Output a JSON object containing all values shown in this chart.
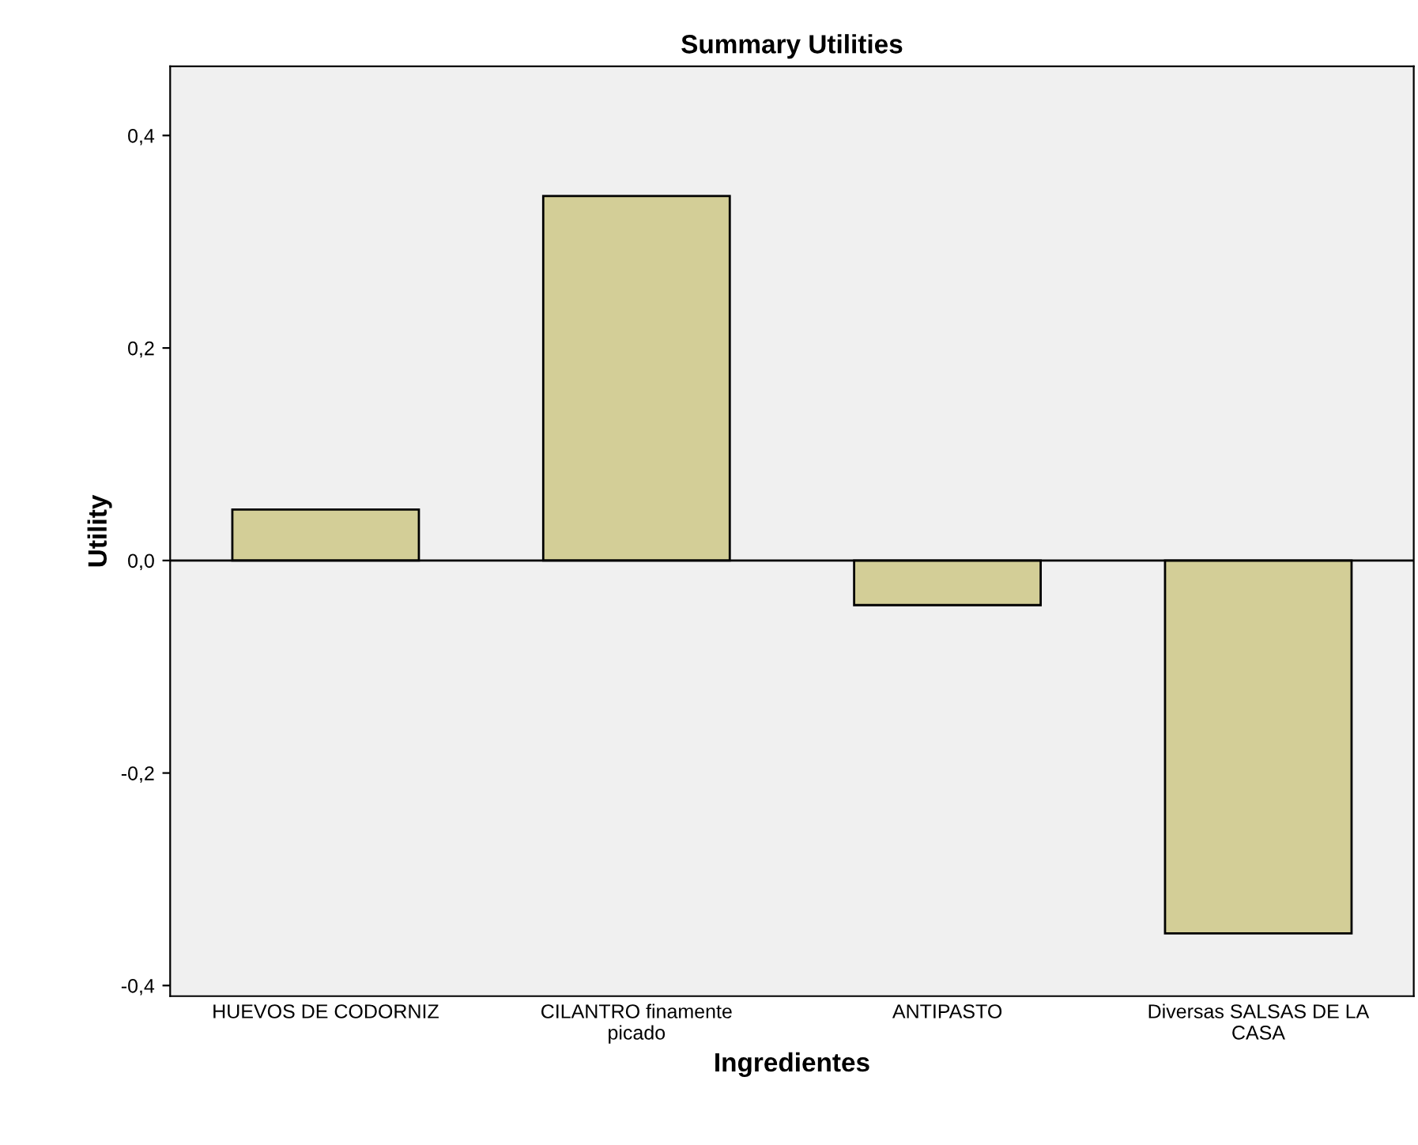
{
  "chart_data": {
    "type": "bar",
    "title": "Summary Utilities",
    "xlabel": "Ingredientes",
    "ylabel": "Utility",
    "categories": [
      "HUEVOS DE CODORNIZ",
      "CILANTRO finamente\npicado",
      "ANTIPASTO",
      "Diversas SALSAS DE LA\nCASA"
    ],
    "values": [
      0.048,
      0.343,
      -0.042,
      -0.351
    ],
    "color": "#d3ce97",
    "ylim": [
      -0.41,
      0.465
    ],
    "yticks": [
      {
        "value": -0.4,
        "label": "-0,4"
      },
      {
        "value": -0.2,
        "label": "-0,2"
      },
      {
        "value": 0.0,
        "label": "0,0"
      },
      {
        "value": 0.2,
        "label": "0,2"
      },
      {
        "value": 0.4,
        "label": "0,4"
      }
    ],
    "ref_lines": [
      {
        "axis": "y",
        "value": 0.0,
        "color": "#000000"
      }
    ],
    "grid": false,
    "legend": false
  }
}
